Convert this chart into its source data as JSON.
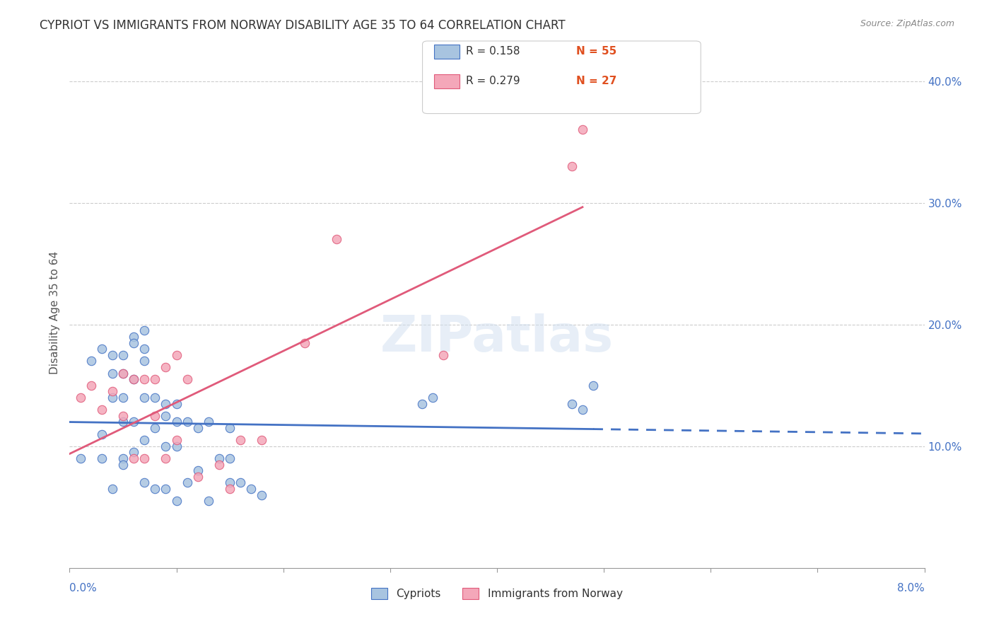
{
  "title": "CYPRIOT VS IMMIGRANTS FROM NORWAY DISABILITY AGE 35 TO 64 CORRELATION CHART",
  "source": "Source: ZipAtlas.com",
  "ylabel": "Disability Age 35 to 64",
  "xlim": [
    0.0,
    0.08
  ],
  "ylim": [
    0.0,
    0.42
  ],
  "xticks": [
    0.0,
    0.01,
    0.02,
    0.03,
    0.04,
    0.05,
    0.06,
    0.07,
    0.08
  ],
  "yticks_right": [
    0.1,
    0.2,
    0.3,
    0.4
  ],
  "ytick_labels_right": [
    "10.0%",
    "20.0%",
    "30.0%",
    "40.0%"
  ],
  "legend_r1": "R = 0.158",
  "legend_n1": "N = 55",
  "legend_r2": "R = 0.279",
  "legend_n2": "N = 27",
  "color_cypriot": "#a8c4e0",
  "color_norway": "#f4a7b9",
  "color_cypriot_line": "#4472c4",
  "color_norway_line": "#e05a7a",
  "cypriot_x": [
    0.001,
    0.002,
    0.003,
    0.003,
    0.003,
    0.004,
    0.004,
    0.004,
    0.004,
    0.005,
    0.005,
    0.005,
    0.005,
    0.005,
    0.005,
    0.006,
    0.006,
    0.006,
    0.006,
    0.006,
    0.007,
    0.007,
    0.007,
    0.007,
    0.007,
    0.007,
    0.008,
    0.008,
    0.008,
    0.009,
    0.009,
    0.009,
    0.009,
    0.01,
    0.01,
    0.01,
    0.01,
    0.011,
    0.011,
    0.012,
    0.012,
    0.013,
    0.013,
    0.014,
    0.015,
    0.015,
    0.015,
    0.016,
    0.017,
    0.018,
    0.033,
    0.034,
    0.047,
    0.048,
    0.049
  ],
  "cypriot_y": [
    0.09,
    0.17,
    0.18,
    0.11,
    0.09,
    0.175,
    0.16,
    0.14,
    0.065,
    0.175,
    0.16,
    0.14,
    0.12,
    0.09,
    0.085,
    0.19,
    0.185,
    0.155,
    0.12,
    0.095,
    0.195,
    0.18,
    0.17,
    0.14,
    0.105,
    0.07,
    0.14,
    0.115,
    0.065,
    0.135,
    0.125,
    0.1,
    0.065,
    0.135,
    0.12,
    0.1,
    0.055,
    0.12,
    0.07,
    0.115,
    0.08,
    0.12,
    0.055,
    0.09,
    0.115,
    0.09,
    0.07,
    0.07,
    0.065,
    0.06,
    0.135,
    0.14,
    0.135,
    0.13,
    0.15
  ],
  "norway_x": [
    0.001,
    0.002,
    0.003,
    0.004,
    0.005,
    0.005,
    0.006,
    0.006,
    0.007,
    0.007,
    0.008,
    0.008,
    0.009,
    0.009,
    0.01,
    0.01,
    0.011,
    0.012,
    0.014,
    0.015,
    0.016,
    0.018,
    0.022,
    0.025,
    0.035,
    0.047,
    0.048
  ],
  "norway_y": [
    0.14,
    0.15,
    0.13,
    0.145,
    0.16,
    0.125,
    0.155,
    0.09,
    0.155,
    0.09,
    0.155,
    0.125,
    0.165,
    0.09,
    0.175,
    0.105,
    0.155,
    0.075,
    0.085,
    0.065,
    0.105,
    0.105,
    0.185,
    0.27,
    0.175,
    0.33,
    0.36
  ]
}
